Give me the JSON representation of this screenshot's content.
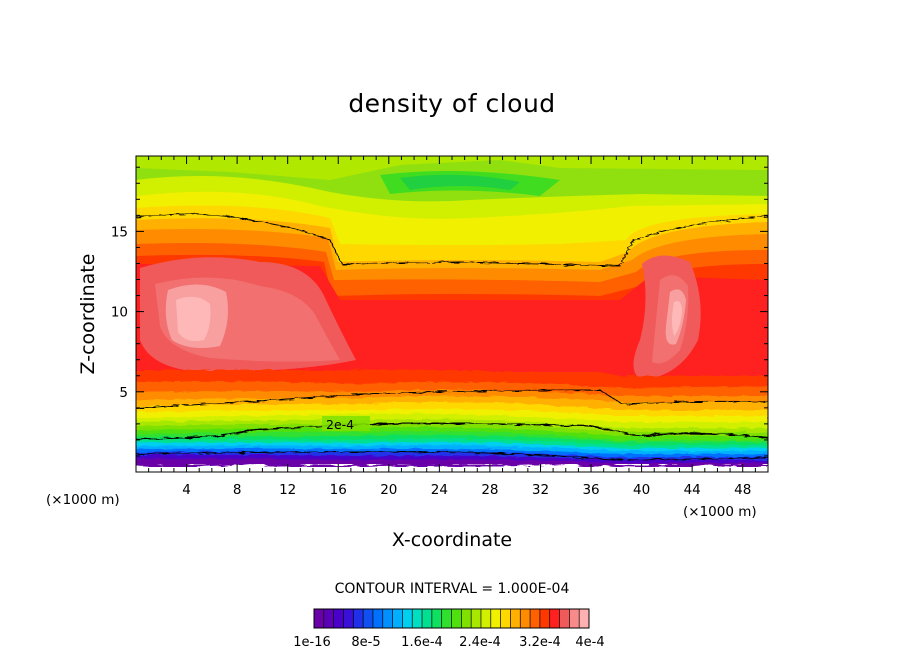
{
  "chart_data": {
    "type": "heatmap",
    "title": "density of cloud",
    "xlabel": "X-coordinate",
    "ylabel": "Z-coordinate",
    "x_unit": "(×1000 m)",
    "y_unit": "(×1000 m)",
    "xlim": [
      0,
      50
    ],
    "ylim": [
      0,
      19.7
    ],
    "x_ticks": [
      4,
      8,
      12,
      16,
      20,
      24,
      28,
      32,
      36,
      40,
      44,
      48
    ],
    "y_ticks": [
      5,
      10,
      15
    ],
    "contour_interval_text": "CONTOUR INTERVAL = 1.000E-04",
    "contour_label": "2e-4",
    "colorbar": {
      "levels": 26,
      "colors": [
        "#6a00a8",
        "#5c00b8",
        "#4a00c8",
        "#3a10d8",
        "#2030e8",
        "#1050f0",
        "#0070ff",
        "#0090ff",
        "#00b0ff",
        "#00d0f0",
        "#00e0c0",
        "#00e090",
        "#10e060",
        "#30e030",
        "#50e010",
        "#80e000",
        "#a8e800",
        "#d0f000",
        "#f0f000",
        "#ffd800",
        "#ffb000",
        "#ff8c00",
        "#ff6000",
        "#ff3800",
        "#ff2020",
        "#f05a5a",
        "#f88a8a",
        "#ffb0b0"
      ],
      "tick_labels": [
        "1e-16",
        "8e-5",
        "1.6e-4",
        "2.4e-4",
        "3.2e-4",
        "4e-4"
      ]
    }
  }
}
